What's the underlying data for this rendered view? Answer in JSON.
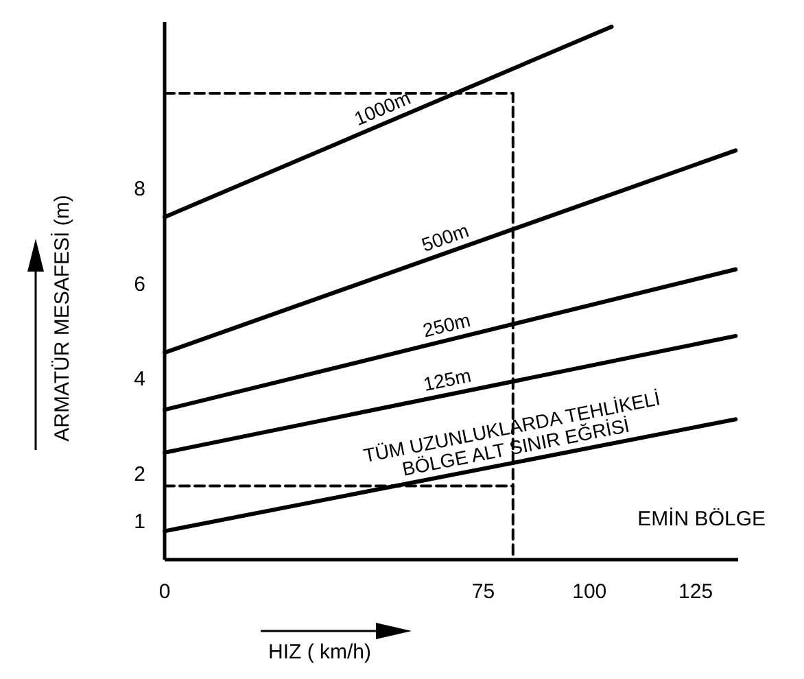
{
  "chart_data": {
    "type": "line",
    "xlabel": "HIZ ( km/h)",
    "ylabel": "ARMATÜR MESAFESİ (m)",
    "xlim": [
      0,
      135
    ],
    "xticks": [
      0,
      75,
      100,
      125
    ],
    "ylim": [
      0.2,
      11.5
    ],
    "yticks": [
      1,
      2,
      4,
      6,
      8
    ],
    "grid": false,
    "marker": "none",
    "line_style": "solid",
    "series": [
      {
        "name": "1000m",
        "color": "#000000",
        "x": [
          0,
          105.2
        ],
        "values": [
          7.4,
          11.4
        ]
      },
      {
        "name": "500m",
        "color": "#000000",
        "x": [
          0,
          134.4
        ],
        "values": [
          4.55,
          8.8
        ]
      },
      {
        "name": "250m",
        "color": "#000000",
        "x": [
          0,
          134.4
        ],
        "values": [
          3.35,
          6.3
        ]
      },
      {
        "name": "125m",
        "color": "#000000",
        "x": [
          0,
          134.4
        ],
        "values": [
          2.45,
          4.9
        ]
      },
      {
        "name": "TÜM UZUNLUKLARDA TEHLİKELİ BÖLGE ALT SINIR EĞRİSİ",
        "color": "#000000",
        "x": [
          0,
          134.4
        ],
        "values": [
          0.8,
          3.15
        ]
      },
      {
        "color": "#000000",
        "line_style": "dashed",
        "x": [
          0,
          82,
          82
        ],
        "values": [
          10,
          10,
          0.2
        ]
      },
      {
        "color": "#000000",
        "line_style": "dashed",
        "x": [
          0,
          82
        ],
        "values": [
          1.75,
          1.75
        ]
      }
    ],
    "annotations": [
      "EMİN BÖLGE"
    ]
  }
}
